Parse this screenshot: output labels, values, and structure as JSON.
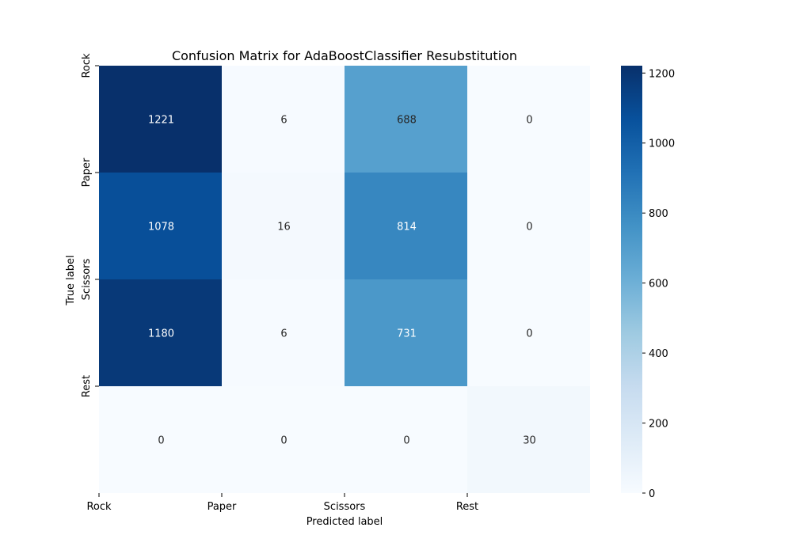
{
  "chart_data": {
    "type": "heatmap",
    "title": "Confusion Matrix for AdaBoostClassifier Resubstitution",
    "xlabel": "Predicted label",
    "ylabel": "True label",
    "x_categories": [
      "Rock",
      "Paper",
      "Scissors",
      "Rest"
    ],
    "y_categories": [
      "Rock",
      "Paper",
      "Scissors",
      "Rest"
    ],
    "values": [
      [
        1221,
        6,
        688,
        0
      ],
      [
        1078,
        16,
        814,
        0
      ],
      [
        1180,
        6,
        731,
        0
      ],
      [
        0,
        0,
        0,
        30
      ]
    ],
    "colormap": "Blues",
    "colorbar": {
      "min": 0,
      "max": 1221,
      "ticks": [
        "0",
        "200",
        "400",
        "600",
        "800",
        "1000",
        "1200"
      ]
    }
  }
}
